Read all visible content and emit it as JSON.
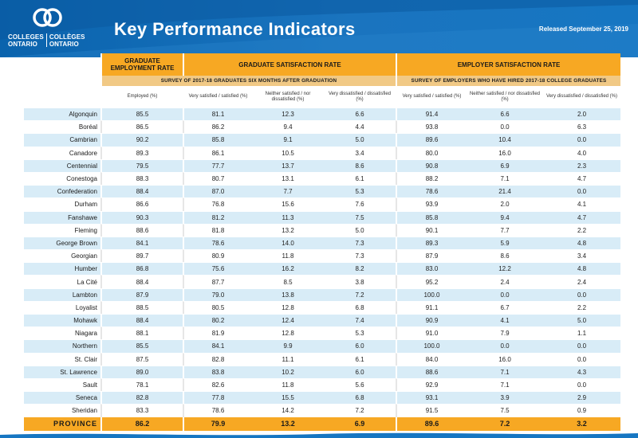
{
  "header": {
    "logo": {
      "line1_left": "COLLEGES",
      "line2_left": "ONTARIO",
      "line1_right": "COLLÈGES",
      "line2_right": "ONTARIO"
    },
    "title": "Key Performance Indicators",
    "release": "Released September 25, 2019"
  },
  "groups": {
    "employment": "GRADUATE EMPLOYMENT RATE",
    "grad_satisfaction": "GRADUATE SATISFACTION RATE",
    "employer_satisfaction": "EMPLOYER SATISFACTION RATE"
  },
  "surveys": {
    "graduates": "SURVEY OF 2017-18 GRADUATES SIX MONTHS AFTER GRADUATION",
    "employers": "SURVEY OF EMPLOYERS WHO HAVE HIRED 2017-18 COLLEGE GRADUATES"
  },
  "columns": [
    "Employed (%)",
    "Very satisfied / satisfied (%)",
    "Neither satisfied / nor dissatisfied (%)",
    "Very dissatisfied / dissatisfied (%)",
    "Very satisfied / satisfied (%)",
    "Neither satisfied / nor dissatisfied (%)",
    "Very dissatisfied / dissatisfied (%)"
  ],
  "rows": [
    {
      "name": "Algonquin",
      "values": [
        "85.5",
        "81.1",
        "12.3",
        "6.6",
        "91.4",
        "6.6",
        "2.0"
      ]
    },
    {
      "name": "Boréal",
      "values": [
        "86.5",
        "86.2",
        "9.4",
        "4.4",
        "93.8",
        "0.0",
        "6.3"
      ]
    },
    {
      "name": "Cambrian",
      "values": [
        "90.2",
        "85.8",
        "9.1",
        "5.0",
        "89.6",
        "10.4",
        "0.0"
      ]
    },
    {
      "name": "Canadore",
      "values": [
        "89.3",
        "86.1",
        "10.5",
        "3.4",
        "80.0",
        "16.0",
        "4.0"
      ]
    },
    {
      "name": "Centennial",
      "values": [
        "79.5",
        "77.7",
        "13.7",
        "8.6",
        "90.8",
        "6.9",
        "2.3"
      ]
    },
    {
      "name": "Conestoga",
      "values": [
        "88.3",
        "80.7",
        "13.1",
        "6.1",
        "88.2",
        "7.1",
        "4.7"
      ]
    },
    {
      "name": "Confederation",
      "values": [
        "88.4",
        "87.0",
        "7.7",
        "5.3",
        "78.6",
        "21.4",
        "0.0"
      ]
    },
    {
      "name": "Durham",
      "values": [
        "86.6",
        "76.8",
        "15.6",
        "7.6",
        "93.9",
        "2.0",
        "4.1"
      ]
    },
    {
      "name": "Fanshawe",
      "values": [
        "90.3",
        "81.2",
        "11.3",
        "7.5",
        "85.8",
        "9.4",
        "4.7"
      ]
    },
    {
      "name": "Fleming",
      "values": [
        "88.6",
        "81.8",
        "13.2",
        "5.0",
        "90.1",
        "7.7",
        "2.2"
      ]
    },
    {
      "name": "George Brown",
      "values": [
        "84.1",
        "78.6",
        "14.0",
        "7.3",
        "89.3",
        "5.9",
        "4.8"
      ]
    },
    {
      "name": "Georgian",
      "values": [
        "89.7",
        "80.9",
        "11.8",
        "7.3",
        "87.9",
        "8.6",
        "3.4"
      ]
    },
    {
      "name": "Humber",
      "values": [
        "86.8",
        "75.6",
        "16.2",
        "8.2",
        "83.0",
        "12.2",
        "4.8"
      ]
    },
    {
      "name": "La Cité",
      "values": [
        "88.4",
        "87.7",
        "8.5",
        "3.8",
        "95.2",
        "2.4",
        "2.4"
      ]
    },
    {
      "name": "Lambton",
      "values": [
        "87.9",
        "79.0",
        "13.8",
        "7.2",
        "100.0",
        "0.0",
        "0.0"
      ]
    },
    {
      "name": "Loyalist",
      "values": [
        "88.5",
        "80.5",
        "12.8",
        "6.8",
        "91.1",
        "6.7",
        "2.2"
      ]
    },
    {
      "name": "Mohawk",
      "values": [
        "88.4",
        "80.2",
        "12.4",
        "7.4",
        "90.9",
        "4.1",
        "5.0"
      ]
    },
    {
      "name": "Niagara",
      "values": [
        "88.1",
        "81.9",
        "12.8",
        "5.3",
        "91.0",
        "7.9",
        "1.1"
      ]
    },
    {
      "name": "Northern",
      "values": [
        "85.5",
        "84.1",
        "9.9",
        "6.0",
        "100.0",
        "0.0",
        "0.0"
      ]
    },
    {
      "name": "St. Clair",
      "values": [
        "87.5",
        "82.8",
        "11.1",
        "6.1",
        "84.0",
        "16.0",
        "0.0"
      ]
    },
    {
      "name": "St. Lawrence",
      "values": [
        "89.0",
        "83.8",
        "10.2",
        "6.0",
        "88.6",
        "7.1",
        "4.3"
      ]
    },
    {
      "name": "Sault",
      "values": [
        "78.1",
        "82.6",
        "11.8",
        "5.6",
        "92.9",
        "7.1",
        "0.0"
      ]
    },
    {
      "name": "Seneca",
      "values": [
        "82.8",
        "77.8",
        "15.5",
        "6.8",
        "93.1",
        "3.9",
        "2.9"
      ]
    },
    {
      "name": "Sheridan",
      "values": [
        "83.3",
        "78.6",
        "14.2",
        "7.2",
        "91.5",
        "7.5",
        "0.9"
      ]
    }
  ],
  "province": {
    "name": "PROVINCE",
    "values": [
      "86.2",
      "79.9",
      "13.2",
      "6.9",
      "89.6",
      "7.2",
      "3.2"
    ]
  },
  "colors": {
    "header_blue": "#0a63ad",
    "accent_orange": "#f7a823",
    "survey_band": "#f1c985",
    "row_stripe": "#d8ecf7"
  }
}
